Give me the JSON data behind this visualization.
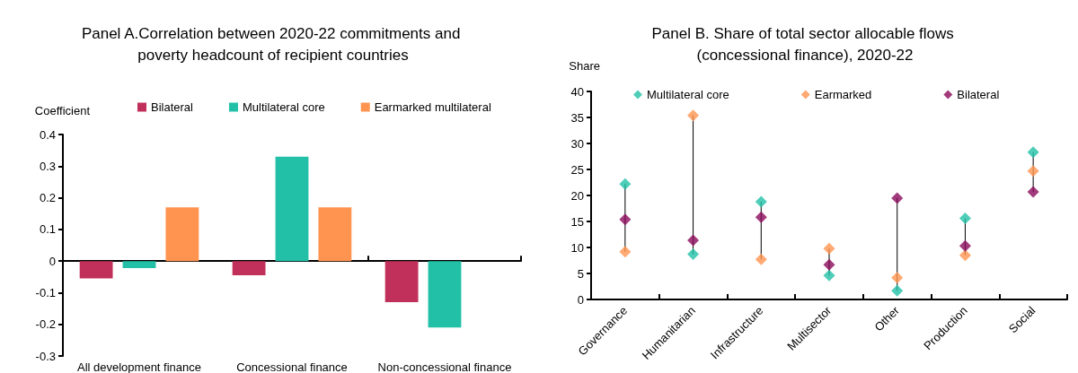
{
  "chart_data": [
    {
      "type": "bar",
      "title": "Panel A.Correlation between 2020-22 commitments and poverty headcount of recipient countries",
      "ylabel": "Coefficient",
      "categories": [
        "All development finance",
        "Concessional finance",
        "Non-concessional finance"
      ],
      "series": [
        {
          "name": "Bilateral",
          "color": "#c0305a",
          "values": [
            -0.055,
            -0.045,
            -0.13
          ]
        },
        {
          "name": "Multilateral core",
          "color": "#22c0a6",
          "values": [
            -0.022,
            0.33,
            -0.21
          ]
        },
        {
          "name": "Earmarked multilateral",
          "color": "#ff9350",
          "values": [
            0.17,
            0.17,
            null
          ]
        }
      ],
      "ylim": [
        -0.3,
        0.4
      ],
      "yticks": [
        -0.3,
        -0.2,
        -0.1,
        0,
        0.1,
        0.2,
        0.3,
        0.4
      ],
      "legend": "top"
    },
    {
      "type": "scatter",
      "title": "Panel B. Share of total sector allocable flows (concessional finance), 2020-22",
      "ylabel": "Share",
      "categories": [
        "Governance",
        "Humanitarian",
        "Infrastructure",
        "Multisector",
        "Other",
        "Production",
        "Social"
      ],
      "series": [
        {
          "name": "Multilateral core",
          "color": "#22c0a6",
          "values": [
            22.2,
            8.7,
            18.8,
            4.6,
            1.7,
            15.6,
            28.3
          ]
        },
        {
          "name": "Earmarked",
          "color": "#ff9350",
          "values": [
            9.2,
            35.4,
            7.7,
            9.8,
            4.2,
            8.5,
            24.7
          ]
        },
        {
          "name": "Bilateral",
          "color": "#8b0a5a",
          "values": [
            15.4,
            11.4,
            15.8,
            6.7,
            19.5,
            10.3,
            20.7
          ]
        }
      ],
      "ylim": [
        0,
        40
      ],
      "yticks": [
        0,
        5,
        10,
        15,
        20,
        25,
        30,
        35,
        40
      ],
      "legend": "top",
      "marker": "diamond"
    }
  ]
}
